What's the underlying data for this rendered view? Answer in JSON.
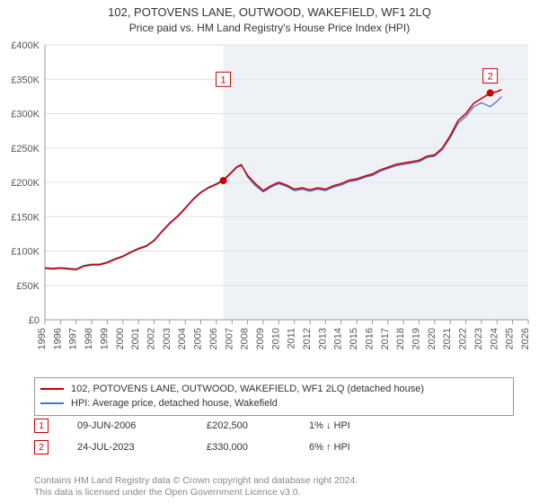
{
  "title": "102, POTOVENS LANE, OUTWOOD, WAKEFIELD, WF1 2LQ",
  "subtitle": "Price paid vs. HM Land Registry's House Price Index (HPI)",
  "chart": {
    "type": "line",
    "background_color": "#ffffff",
    "plot_band_color": "#eef2f7",
    "grid_color": "#e0e0e0",
    "axis_color": "#999999",
    "tick_label_fontsize": 11,
    "tick_label_color": "#555555",
    "y": {
      "min": 0,
      "max": 400000,
      "step": 50000,
      "prefix": "£",
      "suffix_k": true
    },
    "x": {
      "min": 1995,
      "max": 2026,
      "step": 1
    },
    "series": [
      {
        "name": "102, POTOVENS LANE, OUTWOOD, WAKEFIELD, WF1 2LQ (detached house)",
        "color": "#cc0000",
        "line_width": 1.6,
        "x": [
          1995,
          1995.5,
          1996,
          1996.5,
          1997,
          1997.5,
          1998,
          1998.5,
          1999,
          1999.5,
          2000,
          2000.5,
          2001,
          2001.5,
          2002,
          2002.5,
          2003,
          2003.5,
          2004,
          2004.5,
          2005,
          2005.5,
          2006,
          2006.44,
          2007,
          2007.3,
          2007.6,
          2008,
          2008.5,
          2009,
          2009.5,
          2010,
          2010.5,
          2011,
          2011.5,
          2012,
          2012.5,
          2013,
          2013.5,
          2014,
          2014.5,
          2015,
          2015.5,
          2016,
          2016.5,
          2017,
          2017.5,
          2018,
          2018.5,
          2019,
          2019.5,
          2020,
          2020.5,
          2021,
          2021.5,
          2022,
          2022.5,
          2023,
          2023.56,
          2024,
          2024.3
        ],
        "y": [
          75000,
          74000,
          75000,
          74000,
          73000,
          78000,
          80000,
          80000,
          83000,
          88000,
          92000,
          98000,
          103000,
          107000,
          115000,
          128000,
          140000,
          150000,
          162000,
          175000,
          185000,
          192000,
          197000,
          202500,
          215000,
          222000,
          225000,
          210000,
          198000,
          188000,
          195000,
          200000,
          196000,
          190000,
          192000,
          189000,
          192000,
          190000,
          195000,
          198000,
          203000,
          205000,
          209000,
          212000,
          218000,
          222000,
          226000,
          228000,
          230000,
          232000,
          238000,
          240000,
          250000,
          268000,
          290000,
          300000,
          315000,
          322000,
          330000,
          332000,
          335000
        ]
      },
      {
        "name": "HPI: Average price, detached house, Wakefield",
        "color": "#4a74c9",
        "line_width": 1.3,
        "x": [
          1995,
          1995.5,
          1996,
          1996.5,
          1997,
          1997.5,
          1998,
          1998.5,
          1999,
          1999.5,
          2000,
          2000.5,
          2001,
          2001.5,
          2002,
          2002.5,
          2003,
          2003.5,
          2004,
          2004.5,
          2005,
          2005.5,
          2006,
          2006.5,
          2007,
          2007.3,
          2007.6,
          2008,
          2008.5,
          2009,
          2009.5,
          2010,
          2010.5,
          2011,
          2011.5,
          2012,
          2012.5,
          2013,
          2013.5,
          2014,
          2014.5,
          2015,
          2015.5,
          2016,
          2016.5,
          2017,
          2017.5,
          2018,
          2018.5,
          2019,
          2019.5,
          2020,
          2020.5,
          2021,
          2021.5,
          2022,
          2022.5,
          2023,
          2023.56,
          2024,
          2024.3
        ],
        "y": [
          76000,
          75000,
          76000,
          75000,
          74000,
          79000,
          81000,
          81000,
          84000,
          89000,
          93000,
          99000,
          104000,
          108000,
          116000,
          129000,
          141000,
          151000,
          163000,
          176000,
          186000,
          193000,
          198000,
          205000,
          216000,
          223000,
          226000,
          208000,
          195000,
          186000,
          193000,
          198000,
          194000,
          188000,
          190000,
          187000,
          190000,
          188000,
          193000,
          196000,
          201000,
          203000,
          207000,
          210000,
          216000,
          220000,
          224000,
          226000,
          228000,
          230000,
          236000,
          238000,
          248000,
          265000,
          286000,
          296000,
          310000,
          316000,
          310000,
          318000,
          325000
        ]
      }
    ],
    "sale_markers": [
      {
        "n": "1",
        "year": 2006.44,
        "price": 202500,
        "box_color": "#cc0000",
        "label_y": 350000
      },
      {
        "n": "2",
        "year": 2023.56,
        "price": 330000,
        "box_color": "#cc0000",
        "label_y": 355000
      }
    ],
    "bands": [
      {
        "from": 2006.44,
        "to": 2023.56
      },
      {
        "from": 2023.56,
        "to": 2026
      }
    ]
  },
  "legend": {
    "border_color": "#999999",
    "fontsize": 11,
    "rows": [
      {
        "color": "#cc0000",
        "text": "102, POTOVENS LANE, OUTWOOD, WAKEFIELD, WF1 2LQ (detached house)"
      },
      {
        "color": "#4a74c9",
        "text": "HPI: Average price, detached house, Wakefield"
      }
    ]
  },
  "sales": [
    {
      "n": "1",
      "box_color": "#cc0000",
      "date": "09-JUN-2006",
      "price": "£202,500",
      "diff": "1% ↓ HPI"
    },
    {
      "n": "2",
      "box_color": "#cc0000",
      "date": "24-JUL-2023",
      "price": "£330,000",
      "diff": "6% ↑ HPI"
    }
  ],
  "footer_lines": [
    "Contains HM Land Registry data © Crown copyright and database right 2024.",
    "This data is licensed under the Open Government Licence v3.0."
  ]
}
